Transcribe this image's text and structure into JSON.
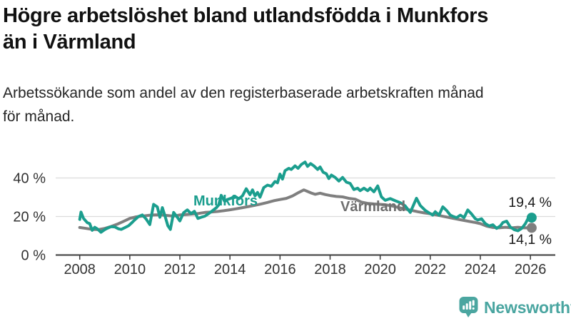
{
  "header": {
    "title_line1": "Högre arbetslöshet bland utlandsfödda i Munkfors",
    "title_line2": "än i Värmland",
    "subtitle_line1": "Arbetssökande som andel av den registerbaserade arbetskraften månad",
    "subtitle_line2": "för månad."
  },
  "colors": {
    "munkfors": "#1b9e8e",
    "varmland": "#7f7f7f",
    "varmland_label": "#6f6f6f",
    "axis": "#3a3a3a",
    "tick_text": "#333333",
    "grid": "#dcdcdc",
    "value_text": "#1a1a1a",
    "brand": "#49a5a0"
  },
  "chart_data": {
    "type": "line",
    "title": "",
    "xlabel": "",
    "ylabel": "",
    "y_unit": "%",
    "ylim": [
      0,
      50
    ],
    "xlim": [
      2007,
      2027
    ],
    "grid": "horizontal-only",
    "legend_position": "inline-labels-on-lines",
    "y_ticks": [
      {
        "value": 0,
        "label": "0 %"
      },
      {
        "value": 20,
        "label": "20 %"
      },
      {
        "value": 40,
        "label": "40 %"
      }
    ],
    "x_ticks": [
      {
        "value": 2008,
        "label": "2008"
      },
      {
        "value": 2010,
        "label": "2010"
      },
      {
        "value": 2012,
        "label": "2012"
      },
      {
        "value": 2014,
        "label": "2014"
      },
      {
        "value": 2016,
        "label": "2016"
      },
      {
        "value": 2018,
        "label": "2018"
      },
      {
        "value": 2020,
        "label": "2020"
      },
      {
        "value": 2022,
        "label": "2022"
      },
      {
        "value": 2024,
        "label": "2024"
      },
      {
        "value": 2026,
        "label": "2026"
      }
    ],
    "series": [
      {
        "name": "Munkfors",
        "label": "Munkfors",
        "color": "#1b9e8e",
        "end_value": 19.4,
        "end_label": "19,4 %",
        "points": [
          [
            2008.0,
            18.5
          ],
          [
            2008.05,
            22.3
          ],
          [
            2008.15,
            19.0
          ],
          [
            2008.3,
            16.8
          ],
          [
            2008.4,
            16.3
          ],
          [
            2008.5,
            12.8
          ],
          [
            2008.6,
            14.4
          ],
          [
            2008.7,
            13.6
          ],
          [
            2008.85,
            11.8
          ],
          [
            2009.0,
            13.2
          ],
          [
            2009.1,
            13.9
          ],
          [
            2009.25,
            14.7
          ],
          [
            2009.4,
            14.6
          ],
          [
            2009.55,
            13.6
          ],
          [
            2009.66,
            13.3
          ],
          [
            2009.8,
            14.2
          ],
          [
            2009.95,
            15.2
          ],
          [
            2010.1,
            17.0
          ],
          [
            2010.2,
            18.3
          ],
          [
            2010.35,
            20.0
          ],
          [
            2010.5,
            20.8
          ],
          [
            2010.65,
            18.7
          ],
          [
            2010.8,
            15.8
          ],
          [
            2010.95,
            26.3
          ],
          [
            2011.1,
            25.0
          ],
          [
            2011.2,
            19.6
          ],
          [
            2011.3,
            24.6
          ],
          [
            2011.42,
            19.6
          ],
          [
            2011.52,
            15.2
          ],
          [
            2011.62,
            13.3
          ],
          [
            2011.75,
            22.1
          ],
          [
            2011.9,
            19.6
          ],
          [
            2012.0,
            17.7
          ],
          [
            2012.15,
            22.0
          ],
          [
            2012.3,
            23.4
          ],
          [
            2012.45,
            21.5
          ],
          [
            2012.58,
            22.7
          ],
          [
            2012.72,
            19.0
          ],
          [
            2012.85,
            19.6
          ],
          [
            2013.0,
            20.2
          ],
          [
            2013.15,
            21.5
          ],
          [
            2013.3,
            23.0
          ],
          [
            2013.45,
            24.5
          ],
          [
            2013.55,
            26.0
          ],
          [
            2013.65,
            31.0
          ],
          [
            2013.78,
            28.0
          ],
          [
            2013.9,
            28.8
          ],
          [
            2014.05,
            29.5
          ],
          [
            2014.2,
            30.5
          ],
          [
            2014.35,
            29.2
          ],
          [
            2014.5,
            30.7
          ],
          [
            2014.65,
            34.4
          ],
          [
            2014.8,
            31.3
          ],
          [
            2014.9,
            33.8
          ],
          [
            2015.0,
            30.7
          ],
          [
            2015.1,
            32.5
          ],
          [
            2015.2,
            30.0
          ],
          [
            2015.35,
            35.0
          ],
          [
            2015.5,
            36.3
          ],
          [
            2015.65,
            35.7
          ],
          [
            2015.8,
            38.2
          ],
          [
            2015.9,
            37.5
          ],
          [
            2016.0,
            42.0
          ],
          [
            2016.1,
            39.4
          ],
          [
            2016.2,
            43.8
          ],
          [
            2016.35,
            45.0
          ],
          [
            2016.45,
            44.4
          ],
          [
            2016.6,
            46.3
          ],
          [
            2016.72,
            45.0
          ],
          [
            2016.85,
            47.0
          ],
          [
            2017.0,
            48.3
          ],
          [
            2017.1,
            46.0
          ],
          [
            2017.22,
            47.5
          ],
          [
            2017.35,
            46.3
          ],
          [
            2017.5,
            44.4
          ],
          [
            2017.6,
            45.7
          ],
          [
            2017.72,
            43.0
          ],
          [
            2017.85,
            42.2
          ],
          [
            2017.95,
            39.7
          ],
          [
            2018.05,
            41.5
          ],
          [
            2018.2,
            40.3
          ],
          [
            2018.35,
            38.4
          ],
          [
            2018.5,
            40.3
          ],
          [
            2018.65,
            37.8
          ],
          [
            2018.8,
            37.2
          ],
          [
            2018.95,
            34.0
          ],
          [
            2019.1,
            34.7
          ],
          [
            2019.2,
            33.4
          ],
          [
            2019.35,
            34.7
          ],
          [
            2019.5,
            33.4
          ],
          [
            2019.6,
            34.7
          ],
          [
            2019.75,
            32.8
          ],
          [
            2019.9,
            35.9
          ],
          [
            2020.05,
            30.2
          ],
          [
            2020.2,
            28.4
          ],
          [
            2020.4,
            29.3
          ],
          [
            2020.6,
            28.2
          ],
          [
            2020.8,
            27.2
          ],
          [
            2021.0,
            25.5
          ],
          [
            2021.2,
            22.1
          ],
          [
            2021.45,
            29.5
          ],
          [
            2021.6,
            25.7
          ],
          [
            2021.8,
            23.2
          ],
          [
            2021.95,
            21.9
          ],
          [
            2022.1,
            20.7
          ],
          [
            2022.2,
            22.5
          ],
          [
            2022.35,
            20.7
          ],
          [
            2022.5,
            25.0
          ],
          [
            2022.65,
            23.2
          ],
          [
            2022.8,
            20.7
          ],
          [
            2022.9,
            20.1
          ],
          [
            2023.05,
            19.4
          ],
          [
            2023.2,
            20.7
          ],
          [
            2023.35,
            19.4
          ],
          [
            2023.5,
            23.4
          ],
          [
            2023.65,
            21.3
          ],
          [
            2023.8,
            18.8
          ],
          [
            2023.9,
            18.2
          ],
          [
            2024.05,
            18.8
          ],
          [
            2024.2,
            16.3
          ],
          [
            2024.35,
            15.1
          ],
          [
            2024.5,
            15.7
          ],
          [
            2024.65,
            13.8
          ],
          [
            2024.8,
            15.1
          ],
          [
            2024.9,
            16.9
          ],
          [
            2025.05,
            17.6
          ],
          [
            2025.2,
            14.5
          ],
          [
            2025.35,
            13.2
          ],
          [
            2025.5,
            12.6
          ],
          [
            2025.65,
            13.8
          ],
          [
            2025.8,
            16.3
          ],
          [
            2025.9,
            18.8
          ],
          [
            2026.05,
            19.4
          ]
        ]
      },
      {
        "name": "Värmland",
        "label": "Värmland",
        "color": "#7f7f7f",
        "end_value": 14.1,
        "end_label": "14,1 %",
        "points": [
          [
            2008.0,
            14.3
          ],
          [
            2008.25,
            13.8
          ],
          [
            2008.5,
            13.3
          ],
          [
            2008.75,
            13.2
          ],
          [
            2009.0,
            13.8
          ],
          [
            2009.25,
            14.8
          ],
          [
            2009.5,
            16.0
          ],
          [
            2009.75,
            17.5
          ],
          [
            2010.0,
            19.0
          ],
          [
            2010.25,
            19.8
          ],
          [
            2010.5,
            20.2
          ],
          [
            2010.75,
            20.6
          ],
          [
            2011.0,
            20.8
          ],
          [
            2011.25,
            20.8
          ],
          [
            2011.5,
            20.5
          ],
          [
            2011.75,
            20.2
          ],
          [
            2012.0,
            20.8
          ],
          [
            2012.25,
            21.0
          ],
          [
            2012.5,
            21.3
          ],
          [
            2012.75,
            21.6
          ],
          [
            2013.0,
            22.1
          ],
          [
            2013.25,
            22.3
          ],
          [
            2013.5,
            22.6
          ],
          [
            2013.75,
            23.0
          ],
          [
            2014.0,
            23.5
          ],
          [
            2014.25,
            24.0
          ],
          [
            2014.5,
            24.6
          ],
          [
            2014.75,
            25.2
          ],
          [
            2015.0,
            25.8
          ],
          [
            2015.25,
            26.5
          ],
          [
            2015.5,
            27.3
          ],
          [
            2015.75,
            28.2
          ],
          [
            2016.0,
            28.8
          ],
          [
            2016.25,
            29.4
          ],
          [
            2016.5,
            30.7
          ],
          [
            2016.75,
            32.5
          ],
          [
            2016.95,
            33.8
          ],
          [
            2017.1,
            33.0
          ],
          [
            2017.25,
            32.2
          ],
          [
            2017.4,
            31.5
          ],
          [
            2017.6,
            32.1
          ],
          [
            2017.8,
            31.4
          ],
          [
            2018.0,
            30.9
          ],
          [
            2018.25,
            30.4
          ],
          [
            2018.5,
            30.2
          ],
          [
            2018.75,
            29.4
          ],
          [
            2019.0,
            29.0
          ],
          [
            2019.25,
            27.5
          ],
          [
            2019.5,
            26.8
          ],
          [
            2019.75,
            26.5
          ],
          [
            2020.0,
            26.3
          ],
          [
            2020.25,
            26.0
          ],
          [
            2020.5,
            25.4
          ],
          [
            2020.75,
            24.6
          ],
          [
            2021.0,
            23.8
          ],
          [
            2021.25,
            23.2
          ],
          [
            2021.5,
            22.5
          ],
          [
            2021.75,
            21.9
          ],
          [
            2022.0,
            21.4
          ],
          [
            2022.25,
            20.8
          ],
          [
            2022.5,
            20.1
          ],
          [
            2022.75,
            19.5
          ],
          [
            2023.0,
            18.8
          ],
          [
            2023.25,
            18.2
          ],
          [
            2023.5,
            17.6
          ],
          [
            2023.75,
            17.0
          ],
          [
            2024.0,
            16.3
          ],
          [
            2024.25,
            15.0
          ],
          [
            2024.5,
            14.3
          ],
          [
            2024.75,
            14.1
          ],
          [
            2025.0,
            14.4
          ],
          [
            2025.25,
            14.1
          ],
          [
            2025.5,
            14.4
          ],
          [
            2025.75,
            14.1
          ],
          [
            2026.05,
            14.1
          ]
        ]
      }
    ]
  },
  "footer": {
    "brand": "Newsworthy",
    "logo_icon": "bar-chart-speech-bubble-icon"
  }
}
